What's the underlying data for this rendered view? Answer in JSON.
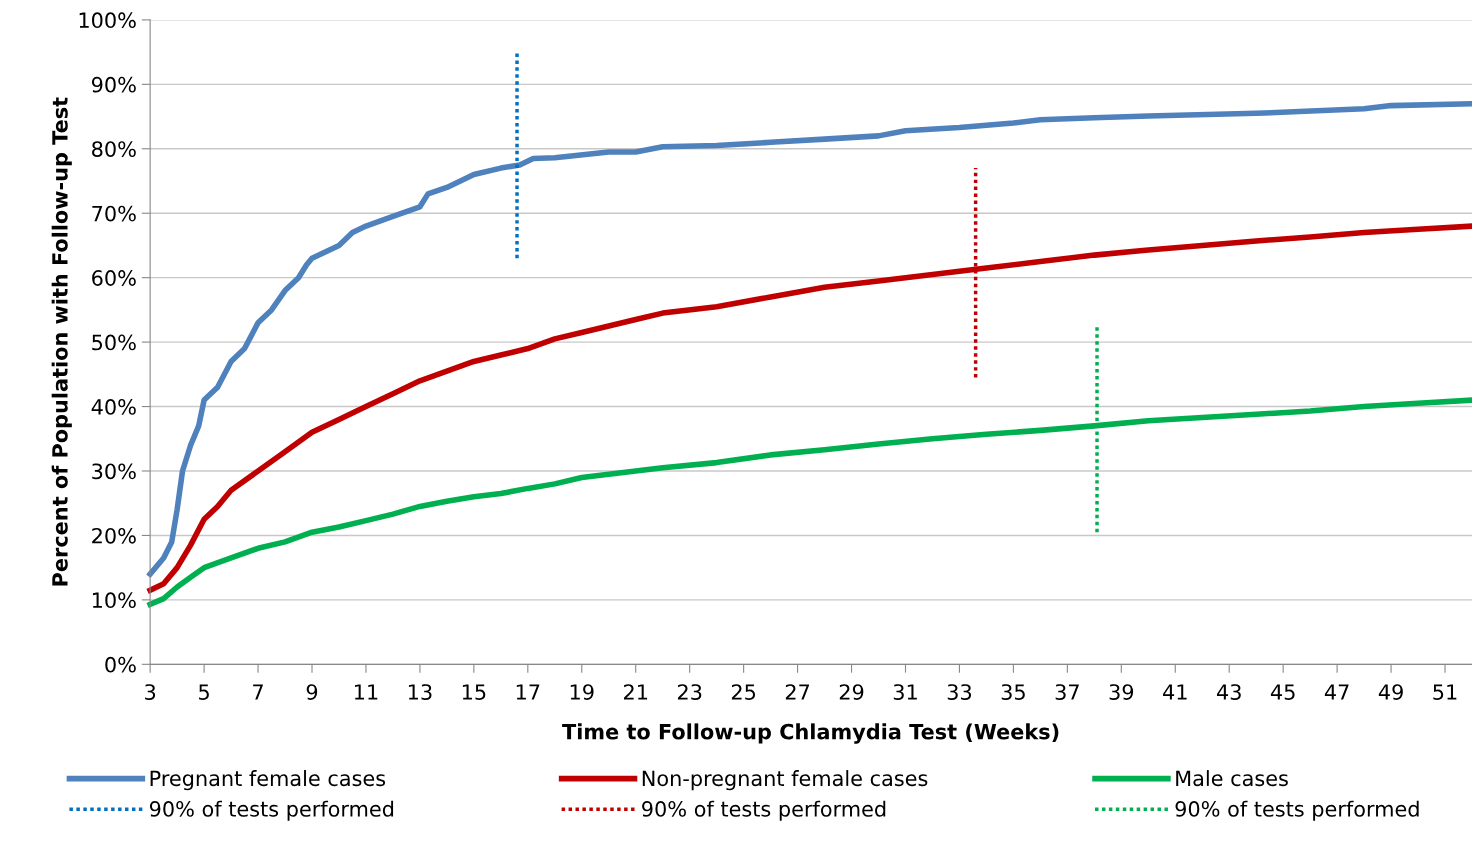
{
  "chart_data": {
    "type": "line",
    "xlabel": "Time to Follow-up Chlamydia Test (Weeks)",
    "ylabel": "Percent of Population with Follow-up Test",
    "xlim": [
      3,
      52
    ],
    "xticks": [
      3,
      5,
      7,
      9,
      11,
      13,
      15,
      17,
      19,
      21,
      23,
      25,
      27,
      29,
      31,
      33,
      35,
      37,
      39,
      41,
      43,
      45,
      47,
      49,
      51
    ],
    "ylim": [
      0,
      100
    ],
    "yticks": [
      {
        "value": 0,
        "label": "0%"
      },
      {
        "value": 10,
        "label": "10%"
      },
      {
        "value": 20,
        "label": "20%"
      },
      {
        "value": 30,
        "label": "30%"
      },
      {
        "value": 40,
        "label": "40%"
      },
      {
        "value": 50,
        "label": "50%"
      },
      {
        "value": 60,
        "label": "60%"
      },
      {
        "value": 70,
        "label": "70%"
      },
      {
        "value": 80,
        "label": "80%"
      },
      {
        "value": 90,
        "label": "90%"
      },
      {
        "value": 100,
        "label": "100%"
      }
    ],
    "grid": "y",
    "legend": "bottom",
    "marker": "none",
    "series": [
      {
        "name": "Pregnant female cases",
        "color": "#4f81bd",
        "line_style": "solid",
        "x": [
          3,
          3.5,
          3.8,
          4,
          4.2,
          4.5,
          4.8,
          5,
          5.5,
          6,
          6.5,
          7,
          7.5,
          8,
          8.5,
          8.8,
          9,
          10,
          10.5,
          11,
          12,
          13,
          13.3,
          14,
          15,
          16,
          16.7,
          17.2,
          18,
          20,
          21,
          22,
          24,
          26,
          28,
          30,
          31,
          33,
          35,
          36,
          38,
          40,
          44,
          48,
          49,
          52
        ],
        "values": [
          14,
          16.5,
          19,
          24,
          30,
          34,
          37,
          41,
          43,
          47,
          49,
          53,
          55,
          58,
          60,
          62,
          63,
          65,
          67,
          68,
          69.5,
          71,
          73,
          74,
          76,
          77,
          77.5,
          78.5,
          78.6,
          79.5,
          79.5,
          80.3,
          80.5,
          81,
          81.5,
          82,
          82.8,
          83.3,
          84,
          84.5,
          84.8,
          85.1,
          85.5,
          86.2,
          86.7,
          87
        ]
      },
      {
        "name": "Non-pregnant female cases",
        "color": "#c00000",
        "line_style": "solid",
        "x": [
          3,
          3.5,
          4,
          4.5,
          5,
          5.5,
          6,
          7,
          8,
          8.5,
          9,
          10,
          11,
          12,
          13,
          14,
          15,
          16,
          17,
          18,
          19,
          20,
          21,
          22,
          24,
          26,
          28,
          30,
          32,
          34,
          36,
          38,
          40,
          42,
          44,
          46,
          48,
          50,
          52
        ],
        "values": [
          11.5,
          12.5,
          15,
          18.5,
          22.5,
          24.5,
          27,
          30,
          33,
          34.5,
          36,
          38,
          40,
          42,
          44,
          45.5,
          47,
          48,
          49,
          50.5,
          51.5,
          52.5,
          53.5,
          54.5,
          55.5,
          57,
          58.5,
          59.5,
          60.5,
          61.5,
          62.5,
          63.5,
          64.3,
          65,
          65.7,
          66.3,
          67,
          67.5,
          68
        ]
      },
      {
        "name": "Male cases",
        "color": "#00b050",
        "line_style": "solid",
        "x": [
          3,
          3.5,
          4,
          4.5,
          5,
          6,
          7,
          8,
          9,
          10,
          11,
          12,
          13,
          14,
          15,
          16,
          17,
          18,
          19,
          20,
          22,
          24,
          26,
          28,
          30,
          32,
          34,
          36,
          38,
          40,
          42,
          44,
          46,
          48,
          50,
          52
        ],
        "values": [
          9.3,
          10.2,
          12,
          13.5,
          15,
          16.5,
          18,
          19,
          20.5,
          21.3,
          22.3,
          23.3,
          24.5,
          25.3,
          26,
          26.5,
          27.3,
          28,
          29,
          29.5,
          30.5,
          31.3,
          32.5,
          33.3,
          34.2,
          35,
          35.7,
          36.3,
          37,
          37.8,
          38.3,
          38.8,
          39.3,
          40,
          40.5,
          41
        ]
      },
      {
        "name": "90% of tests performed",
        "color": "#0070c0",
        "line_style": "dotted",
        "x": [
          16.6,
          16.6
        ],
        "values": [
          63,
          95
        ]
      },
      {
        "name": "90% of tests performed",
        "color": "#c00000",
        "line_style": "dotted",
        "x": [
          33.6,
          33.6
        ],
        "values": [
          44.5,
          77
        ]
      },
      {
        "name": "90% of tests performed",
        "color": "#00b050",
        "line_style": "dotted",
        "x": [
          38.1,
          38.1
        ],
        "values": [
          20.5,
          52.5
        ]
      }
    ]
  }
}
